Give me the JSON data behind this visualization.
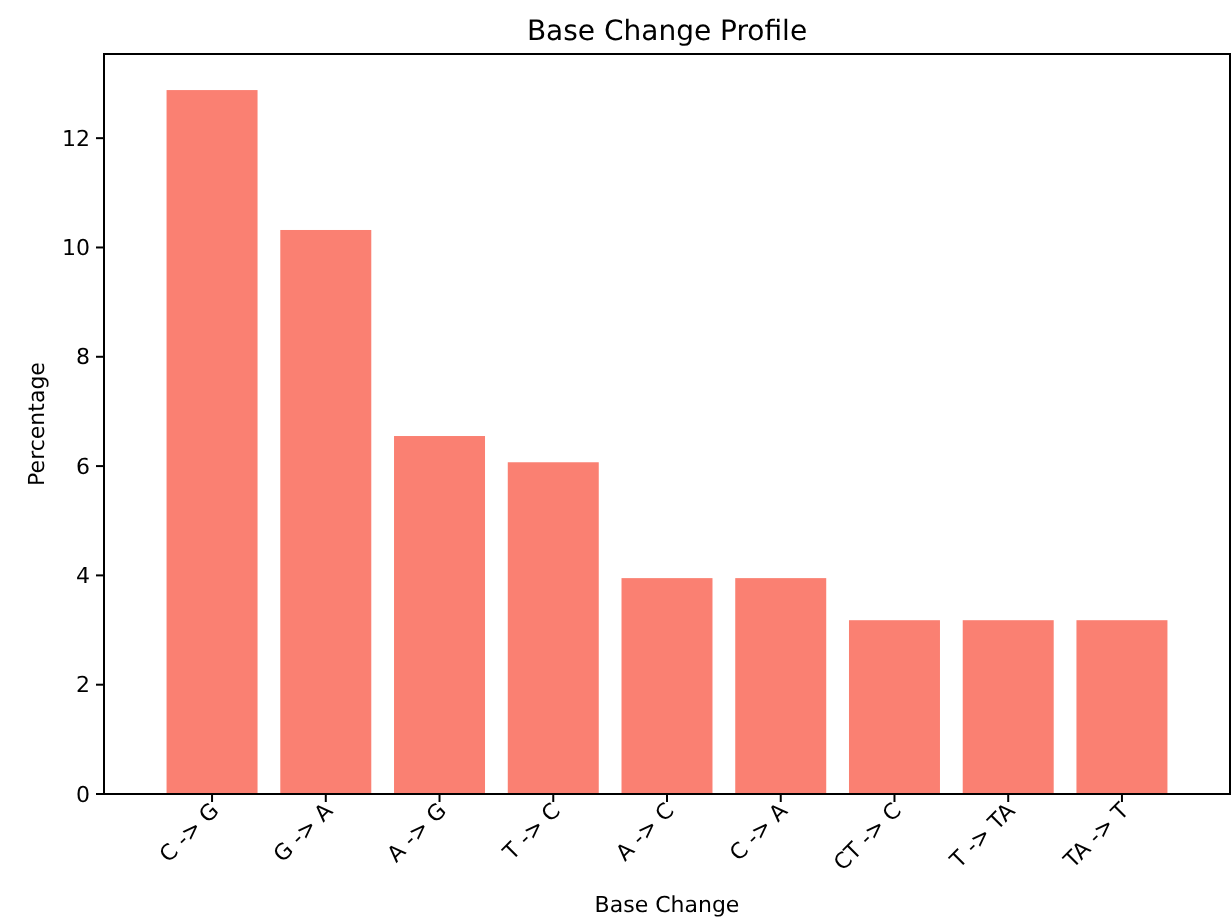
{
  "chart_data": {
    "type": "bar",
    "title": "Base Change Profile",
    "xlabel": "Base Change",
    "ylabel": "Percentage",
    "categories": [
      "C -> G",
      "G -> A",
      "A -> G",
      "T -> C",
      "A -> C",
      "C -> A",
      "CT -> C",
      "T -> TA",
      "TA -> T"
    ],
    "values": [
      12.88,
      10.32,
      6.55,
      6.07,
      3.95,
      3.95,
      3.18,
      3.18,
      3.18
    ],
    "color": "#fa8072",
    "ylim": [
      0,
      13.54
    ],
    "yticks": [
      0,
      2,
      4,
      6,
      8,
      10,
      12
    ]
  }
}
